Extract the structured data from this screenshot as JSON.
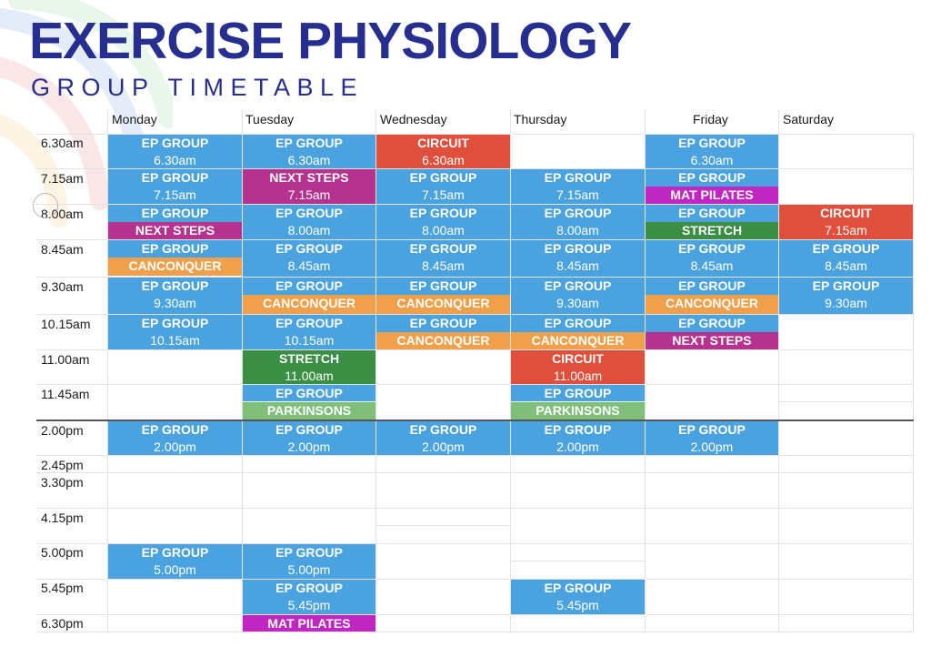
{
  "header": {
    "title": "EXERCISE PHYSIOLOGY",
    "subtitle": "GROUP TIMETABLE"
  },
  "colors": {
    "ep_group": "#4aa3df",
    "circuit": "#e04e3c",
    "next_steps": "#b5338f",
    "mat_pilates": "#c027c0",
    "stretch": "#3a8f45",
    "canconquer": "#f0a04b",
    "parkinsons": "#7fbf7a",
    "title_blue": "#262f8f"
  },
  "days": [
    "Monday",
    "Tuesday",
    "Wednesday",
    "Thursday",
    "Friday",
    "Saturday"
  ],
  "times": [
    "6.30am",
    "7.15am",
    "8.00am",
    "8.45am",
    "9.30am",
    "10.15am",
    "11.00am",
    "11.45am",
    "2.00pm",
    "2.45pm",
    "3.30pm",
    "4.15pm",
    "5.00pm",
    "5.45pm",
    "6.30pm"
  ],
  "classes": [
    {
      "name": "EP GROUP",
      "time": "6.30am",
      "color": "ep_group"
    },
    {
      "name": "EP GROUP",
      "time": "7.15am",
      "color": "ep_group"
    },
    {
      "name": "EP GROUP",
      "time": "",
      "color": "ep_group"
    },
    {
      "name": "NEXT STEPS",
      "time": "",
      "color": "next_steps"
    },
    {
      "name": "EP GROUP",
      "time": "",
      "color": "ep_group"
    },
    {
      "name": "CANCONQUER",
      "time": "",
      "color": "canconquer"
    },
    {
      "name": "EP GROUP",
      "time": "9.30am",
      "color": "ep_group"
    },
    {
      "name": "EP GROUP",
      "time": "10.15am",
      "color": "ep_group"
    },
    {
      "name": "EP GROUP",
      "time": "2.00pm",
      "color": "ep_group"
    },
    {
      "name": "EP GROUP",
      "time": "5.00pm",
      "color": "ep_group"
    },
    {
      "name": "EP GROUP",
      "time": "6.30am",
      "color": "ep_group"
    },
    {
      "name": "NEXT STEPS",
      "time": "7.15am",
      "color": "next_steps"
    },
    {
      "name": "EP GROUP",
      "time": "8.00am",
      "color": "ep_group"
    },
    {
      "name": "EP GROUP",
      "time": "8.45am",
      "color": "ep_group"
    },
    {
      "name": "EP GROUP",
      "time": "",
      "color": "ep_group"
    },
    {
      "name": "CANCONQUER",
      "time": "",
      "color": "canconquer"
    },
    {
      "name": "EP GROUP",
      "time": "10.15am",
      "color": "ep_group"
    },
    {
      "name": "STRETCH",
      "time": "11.00am",
      "color": "stretch"
    },
    {
      "name": "EP GROUP",
      "time": "",
      "color": "ep_group"
    },
    {
      "name": "PARKINSONS",
      "time": "",
      "color": "parkinsons"
    },
    {
      "name": "EP GROUP",
      "time": "2.00pm",
      "color": "ep_group"
    },
    {
      "name": "EP GROUP",
      "time": "5.00pm",
      "color": "ep_group"
    },
    {
      "name": "EP GROUP",
      "time": "5.45pm",
      "color": "ep_group"
    },
    {
      "name": "MAT PILATES",
      "time": "",
      "color": "mat_pilates"
    },
    {
      "name": "CIRCUIT",
      "time": "6.30am",
      "color": "circuit"
    },
    {
      "name": "EP GROUP",
      "time": "7.15am",
      "color": "ep_group"
    },
    {
      "name": "EP GROUP",
      "time": "8.00am",
      "color": "ep_group"
    },
    {
      "name": "EP GROUP",
      "time": "8.45am",
      "color": "ep_group"
    },
    {
      "name": "EP GROUP",
      "time": "",
      "color": "ep_group"
    },
    {
      "name": "CANCONQUER",
      "time": "",
      "color": "canconquer"
    },
    {
      "name": "EP GROUP",
      "time": "",
      "color": "ep_group"
    },
    {
      "name": "CANCONQUER",
      "time": "",
      "color": "canconquer"
    },
    {
      "name": "EP GROUP",
      "time": "2.00pm",
      "color": "ep_group"
    },
    {
      "name": "EP GROUP",
      "time": "7.15am",
      "color": "ep_group"
    },
    {
      "name": "EP GROUP",
      "time": "8.00am",
      "color": "ep_group"
    },
    {
      "name": "EP GROUP",
      "time": "8.45am",
      "color": "ep_group"
    },
    {
      "name": "EP GROUP",
      "time": "9.30am",
      "color": "ep_group"
    },
    {
      "name": "EP GROUP",
      "time": "",
      "color": "ep_group"
    },
    {
      "name": "CANCONQUER",
      "time": "",
      "color": "canconquer"
    },
    {
      "name": "CIRCUIT",
      "time": "11.00am",
      "color": "circuit"
    },
    {
      "name": "EP GROUP",
      "time": "",
      "color": "ep_group"
    },
    {
      "name": "PARKINSONS",
      "time": "",
      "color": "parkinsons"
    },
    {
      "name": "EP GROUP",
      "time": "2.00pm",
      "color": "ep_group"
    },
    {
      "name": "EP GROUP",
      "time": "5.45pm",
      "color": "ep_group"
    },
    {
      "name": "EP GROUP",
      "time": "6.30am",
      "color": "ep_group"
    },
    {
      "name": "EP GROUP",
      "time": "",
      "color": "ep_group"
    },
    {
      "name": "MAT PILATES",
      "time": "",
      "color": "mat_pilates"
    },
    {
      "name": "EP GROUP",
      "time": "",
      "color": "ep_group"
    },
    {
      "name": "STRETCH",
      "time": "",
      "color": "stretch"
    },
    {
      "name": "EP GROUP",
      "time": "8.45am",
      "color": "ep_group"
    },
    {
      "name": "EP GROUP",
      "time": "",
      "color": "ep_group"
    },
    {
      "name": "CANCONQUER",
      "time": "",
      "color": "canconquer"
    },
    {
      "name": "EP GROUP",
      "time": "",
      "color": "ep_group"
    },
    {
      "name": "NEXT STEPS",
      "time": "",
      "color": "next_steps"
    },
    {
      "name": "EP GROUP",
      "time": "2.00pm",
      "color": "ep_group"
    },
    {
      "name": "CIRCUIT",
      "time": "7.15am",
      "color": "circuit"
    },
    {
      "name": "EP GROUP",
      "time": "8.45am",
      "color": "ep_group"
    },
    {
      "name": "EP GROUP",
      "time": "9.30am",
      "color": "ep_group"
    }
  ]
}
